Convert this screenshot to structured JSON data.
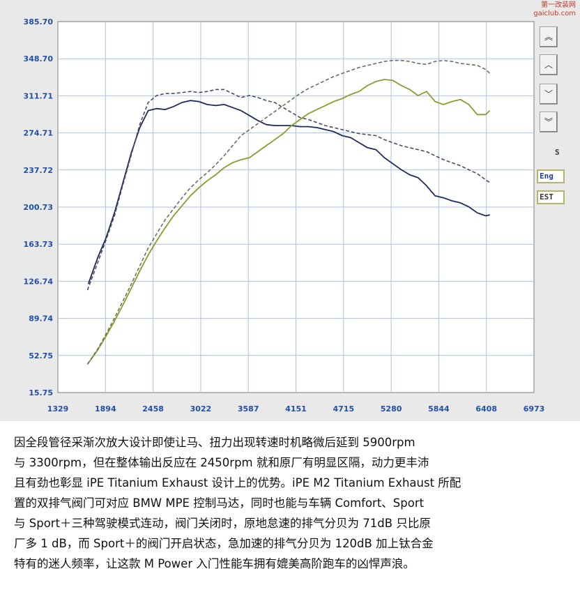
{
  "chart_data": {
    "type": "line",
    "x_unit": "rpm",
    "xlim": [
      1329,
      6973
    ],
    "ylim": [
      15.75,
      385.7
    ],
    "x_ticks": [
      "1329",
      "1894",
      "2458",
      "3022",
      "3587",
      "4151",
      "4715",
      "5280",
      "5844",
      "6408",
      "6973"
    ],
    "y_ticks": [
      "385.70",
      "348.70",
      "311.71",
      "274.71",
      "237.72",
      "200.73",
      "163.73",
      "126.74",
      "89.74",
      "52.75",
      "15.75"
    ],
    "grid": true,
    "series": [
      {
        "key": "torque_ipe",
        "color": "#1c2a5c",
        "dashed": false,
        "points": [
          [
            1690,
            124
          ],
          [
            1800,
            150
          ],
          [
            1900,
            170
          ],
          [
            2000,
            195
          ],
          [
            2100,
            225
          ],
          [
            2200,
            255
          ],
          [
            2300,
            280
          ],
          [
            2400,
            297
          ],
          [
            2500,
            299
          ],
          [
            2600,
            298
          ],
          [
            2700,
            301
          ],
          [
            2800,
            305
          ],
          [
            2900,
            307
          ],
          [
            3000,
            306
          ],
          [
            3100,
            303
          ],
          [
            3200,
            302
          ],
          [
            3300,
            303
          ],
          [
            3400,
            300
          ],
          [
            3500,
            297
          ],
          [
            3600,
            292
          ],
          [
            3700,
            287
          ],
          [
            3800,
            283
          ],
          [
            3900,
            282
          ],
          [
            4000,
            282
          ],
          [
            4100,
            282
          ],
          [
            4200,
            281
          ],
          [
            4300,
            281
          ],
          [
            4400,
            280
          ],
          [
            4500,
            278
          ],
          [
            4600,
            276
          ],
          [
            4700,
            272
          ],
          [
            4800,
            270
          ],
          [
            4900,
            265
          ],
          [
            5000,
            260
          ],
          [
            5100,
            258
          ],
          [
            5200,
            250
          ],
          [
            5300,
            244
          ],
          [
            5400,
            238
          ],
          [
            5500,
            233
          ],
          [
            5600,
            230
          ],
          [
            5700,
            222
          ],
          [
            5800,
            212
          ],
          [
            5900,
            210
          ],
          [
            6000,
            207
          ],
          [
            6100,
            205
          ],
          [
            6200,
            201
          ],
          [
            6300,
            195
          ],
          [
            6400,
            192
          ],
          [
            6450,
            193
          ]
        ]
      },
      {
        "key": "torque_stock",
        "color": "#4a4a66",
        "dashed": true,
        "points": [
          [
            1680,
            118
          ],
          [
            1800,
            145
          ],
          [
            1900,
            168
          ],
          [
            2000,
            192
          ],
          [
            2100,
            223
          ],
          [
            2200,
            253
          ],
          [
            2300,
            283
          ],
          [
            2400,
            305
          ],
          [
            2500,
            312
          ],
          [
            2600,
            314
          ],
          [
            2700,
            314
          ],
          [
            2800,
            315
          ],
          [
            2900,
            316
          ],
          [
            3000,
            315
          ],
          [
            3100,
            316
          ],
          [
            3200,
            318
          ],
          [
            3300,
            318
          ],
          [
            3400,
            314
          ],
          [
            3500,
            310
          ],
          [
            3600,
            312
          ],
          [
            3700,
            310
          ],
          [
            3800,
            307
          ],
          [
            3900,
            305
          ],
          [
            4000,
            300
          ],
          [
            4100,
            295
          ],
          [
            4200,
            290
          ],
          [
            4300,
            288
          ],
          [
            4400,
            285
          ],
          [
            4500,
            282
          ],
          [
            4600,
            280
          ],
          [
            4700,
            278
          ],
          [
            4800,
            276
          ],
          [
            4900,
            274
          ],
          [
            5000,
            273
          ],
          [
            5100,
            272
          ],
          [
            5200,
            268
          ],
          [
            5300,
            265
          ],
          [
            5400,
            262
          ],
          [
            5500,
            260
          ],
          [
            5600,
            258
          ],
          [
            5700,
            256
          ],
          [
            5800,
            252
          ],
          [
            5900,
            248
          ],
          [
            6000,
            245
          ],
          [
            6100,
            242
          ],
          [
            6200,
            238
          ],
          [
            6300,
            234
          ],
          [
            6400,
            228
          ],
          [
            6450,
            225
          ]
        ]
      },
      {
        "key": "power_ipe",
        "color": "#8c9a2c",
        "dashed": false,
        "points": [
          [
            1680,
            44
          ],
          [
            1800,
            58
          ],
          [
            1900,
            72
          ],
          [
            2000,
            87
          ],
          [
            2100,
            103
          ],
          [
            2200,
            120
          ],
          [
            2300,
            137
          ],
          [
            2400,
            153
          ],
          [
            2500,
            167
          ],
          [
            2600,
            180
          ],
          [
            2700,
            192
          ],
          [
            2800,
            202
          ],
          [
            2900,
            212
          ],
          [
            3000,
            220
          ],
          [
            3100,
            227
          ],
          [
            3200,
            233
          ],
          [
            3300,
            240
          ],
          [
            3400,
            245
          ],
          [
            3500,
            248
          ],
          [
            3600,
            250
          ],
          [
            3700,
            256
          ],
          [
            3800,
            262
          ],
          [
            3900,
            268
          ],
          [
            4000,
            274
          ],
          [
            4100,
            282
          ],
          [
            4200,
            288
          ],
          [
            4300,
            294
          ],
          [
            4400,
            298
          ],
          [
            4500,
            302
          ],
          [
            4600,
            306
          ],
          [
            4700,
            309
          ],
          [
            4800,
            313
          ],
          [
            4900,
            316
          ],
          [
            5000,
            322
          ],
          [
            5100,
            326
          ],
          [
            5200,
            328
          ],
          [
            5300,
            327
          ],
          [
            5400,
            322
          ],
          [
            5500,
            318
          ],
          [
            5600,
            312
          ],
          [
            5700,
            316
          ],
          [
            5800,
            306
          ],
          [
            5900,
            303
          ],
          [
            6000,
            306
          ],
          [
            6100,
            308
          ],
          [
            6200,
            303
          ],
          [
            6300,
            293
          ],
          [
            6400,
            293
          ],
          [
            6450,
            297
          ]
        ]
      },
      {
        "key": "power_stock",
        "color": "#6e6e56",
        "dashed": true,
        "points": [
          [
            1680,
            44
          ],
          [
            1800,
            59
          ],
          [
            1900,
            74
          ],
          [
            2000,
            90
          ],
          [
            2100,
            107
          ],
          [
            2200,
            124
          ],
          [
            2300,
            142
          ],
          [
            2400,
            160
          ],
          [
            2500,
            174
          ],
          [
            2600,
            188
          ],
          [
            2700,
            199
          ],
          [
            2800,
            210
          ],
          [
            2900,
            220
          ],
          [
            3000,
            228
          ],
          [
            3100,
            235
          ],
          [
            3200,
            243
          ],
          [
            3300,
            252
          ],
          [
            3400,
            262
          ],
          [
            3500,
            272
          ],
          [
            3600,
            278
          ],
          [
            3700,
            284
          ],
          [
            3800,
            290
          ],
          [
            3900,
            296
          ],
          [
            4000,
            302
          ],
          [
            4100,
            308
          ],
          [
            4200,
            314
          ],
          [
            4300,
            319
          ],
          [
            4400,
            323
          ],
          [
            4500,
            327
          ],
          [
            4600,
            331
          ],
          [
            4700,
            334
          ],
          [
            4800,
            337
          ],
          [
            4900,
            340
          ],
          [
            5000,
            342
          ],
          [
            5100,
            344
          ],
          [
            5200,
            346
          ],
          [
            5300,
            347
          ],
          [
            5400,
            347
          ],
          [
            5500,
            346
          ],
          [
            5600,
            344
          ],
          [
            5700,
            343
          ],
          [
            5800,
            346
          ],
          [
            5900,
            347
          ],
          [
            6000,
            346
          ],
          [
            6100,
            344
          ],
          [
            6200,
            343
          ],
          [
            6300,
            342
          ],
          [
            6400,
            338
          ],
          [
            6450,
            334
          ]
        ]
      }
    ]
  },
  "side_panel": {
    "label_s": "S",
    "box1": "Eng",
    "box2": "EST"
  },
  "watermark": {
    "top_line1": "第一改装网",
    "top_line2": "gaiclub.com"
  },
  "caption": {
    "lines": [
      "因全段管径采渐次放大设计即使让马、扭力出现转速时机略微后延到 5900rpm",
      "与 3300rpm，但在整体输出反应在 2450rpm 就和原厂有明显区隔，动力更丰沛",
      "且有劲也彰显 iPE Titanium Exhaust 设计上的优势。iPE M2 Titanium Exhaust 所配",
      "置的双排气阀门可对应 BMW MPE 控制马达，同时也能与车辆 Comfort、Sport",
      "与 Sport＋三种驾驶模式连动，阀门关闭时，原地怠速的排气分贝为 71dB 只比原",
      "厂多 1 dB，而 Sport＋的阀门开启状态，急加速的排气分贝为 120dB 加上钛合金",
      "特有的迷人频率，让这款 M Power 入门性能车拥有媲美高阶跑车的凶悍声浪。"
    ]
  }
}
